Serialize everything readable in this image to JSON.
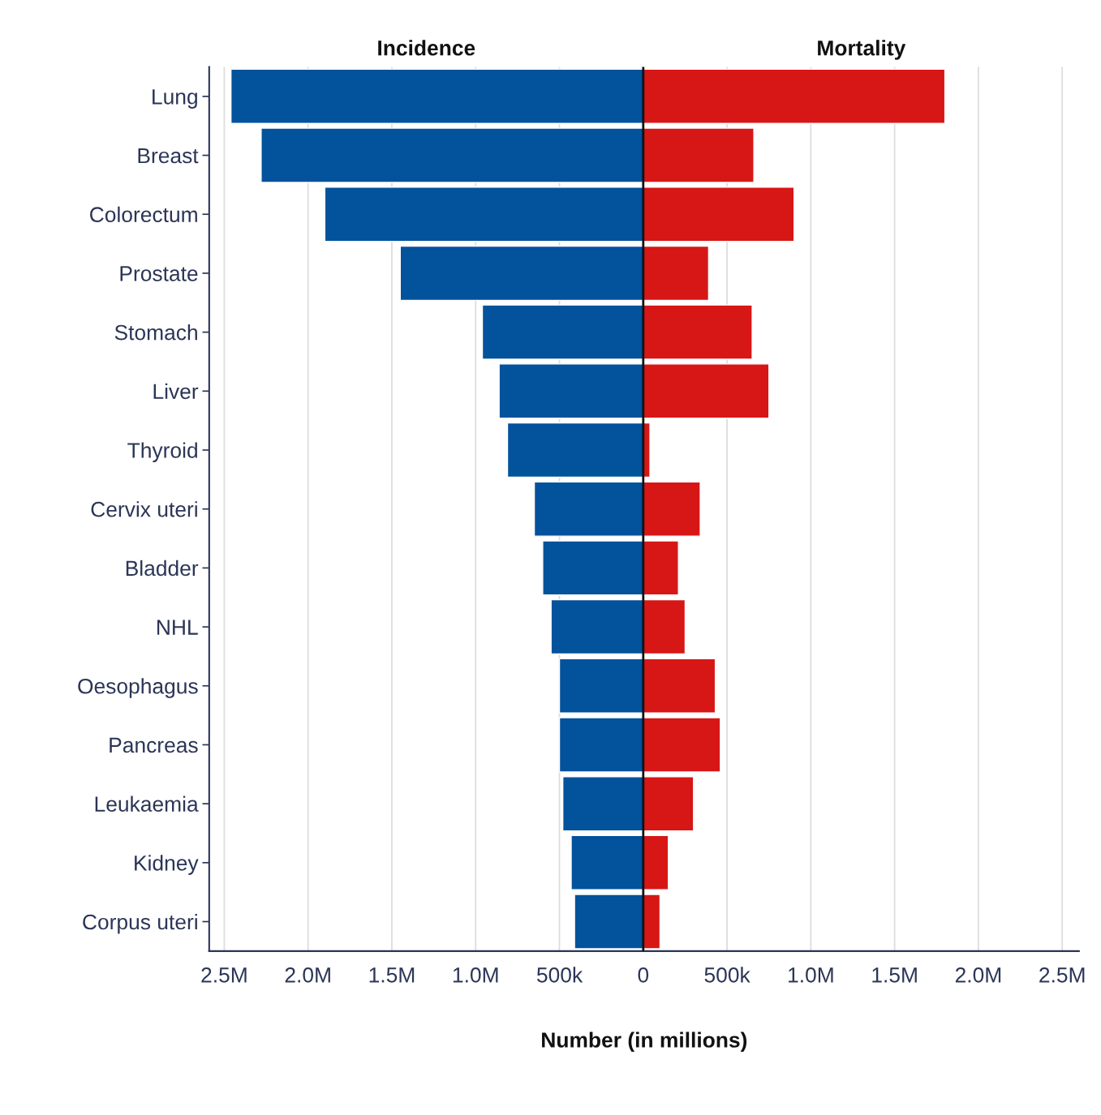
{
  "chart_data": {
    "type": "bar",
    "orientation": "horizontal",
    "xlabel": "Number (in millions)",
    "categories": [
      "Lung",
      "Breast",
      "Colorectum",
      "Prostate",
      "Stomach",
      "Liver",
      "Thyroid",
      "Cervix uteri",
      "Bladder",
      "NHL",
      "Oesophagus",
      "Pancreas",
      "Leukaemia",
      "Kidney",
      "Corpus uteri"
    ],
    "series": [
      {
        "name": "Incidence",
        "color": "#02529c",
        "values": [
          -2460000,
          -2280000,
          -1900000,
          -1450000,
          -960000,
          -860000,
          -810000,
          -650000,
          -600000,
          -550000,
          -500000,
          -500000,
          -480000,
          -430000,
          -410000
        ]
      },
      {
        "name": "Mortality",
        "color": "#d71616",
        "values": [
          1800000,
          660000,
          900000,
          390000,
          650000,
          750000,
          40000,
          340000,
          210000,
          250000,
          430000,
          460000,
          300000,
          150000,
          100000
        ]
      }
    ],
    "xlim": [
      -2590000,
      2600000
    ],
    "xticks": [
      {
        "value": -2500000,
        "label": "2.5M"
      },
      {
        "value": -2000000,
        "label": "2.0M"
      },
      {
        "value": -1500000,
        "label": "1.5M"
      },
      {
        "value": -1000000,
        "label": "1.0M"
      },
      {
        "value": -500000,
        "label": "500k"
      },
      0,
      {
        "value": 500000,
        "label": "500k"
      },
      {
        "value": 1000000,
        "label": "1.0M"
      },
      {
        "value": 1500000,
        "label": "1.5M"
      },
      {
        "value": 2000000,
        "label": "2.0M"
      },
      {
        "value": 2500000,
        "label": "2.5M"
      }
    ],
    "ref_lines": [
      {
        "axis": "x",
        "value": 0,
        "color": "#111111"
      }
    ],
    "grid": "x",
    "legend": false,
    "stacked": true
  }
}
